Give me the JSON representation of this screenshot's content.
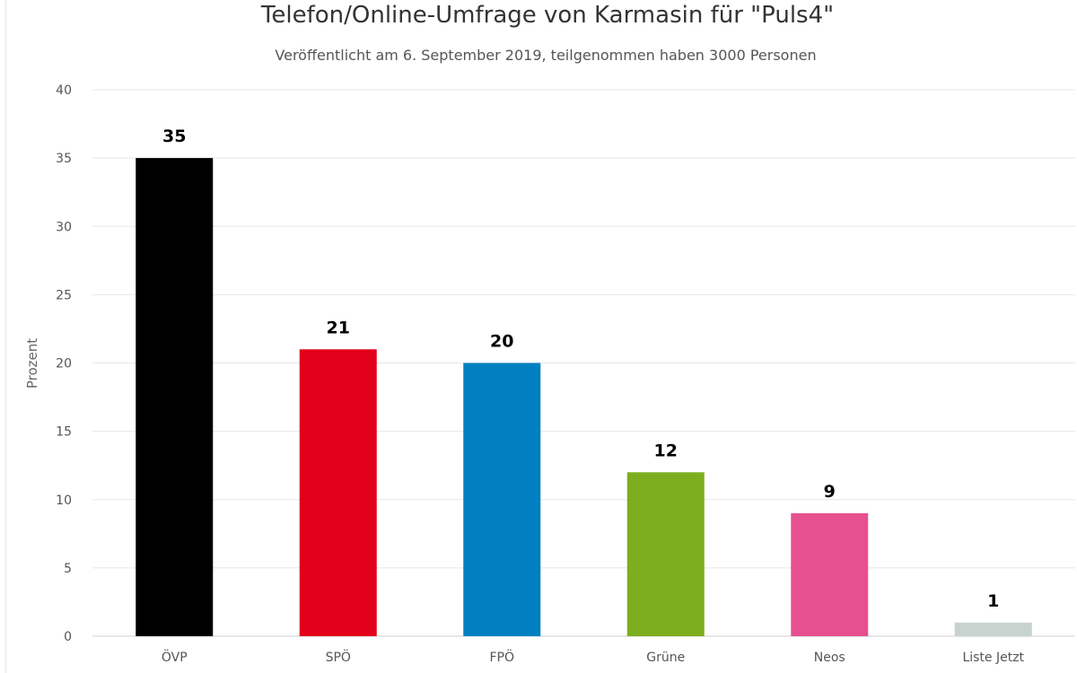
{
  "chart_data": {
    "type": "bar",
    "title": "Telefon/Online-Umfrage von Karmasin für \"Puls4\"",
    "subtitle": "Veröffentlicht am 6. September 2019, teilgenommen haben 3000 Personen",
    "ylabel": "Prozent",
    "xlabel": "",
    "categories": [
      "ÖVP",
      "SPÖ",
      "FPÖ",
      "Grüne",
      "Neos",
      "Liste Jetzt"
    ],
    "values": [
      35,
      21,
      20,
      12,
      9,
      1
    ],
    "colors": [
      "#000000",
      "#e2001a",
      "#0080c0",
      "#7cae1f",
      "#e6508f",
      "#c8d3d0"
    ],
    "ylim": [
      0,
      40
    ],
    "yticks": [
      0,
      5,
      10,
      15,
      20,
      25,
      30,
      35,
      40
    ],
    "grid": true,
    "legend": "none",
    "data_labels": true
  }
}
